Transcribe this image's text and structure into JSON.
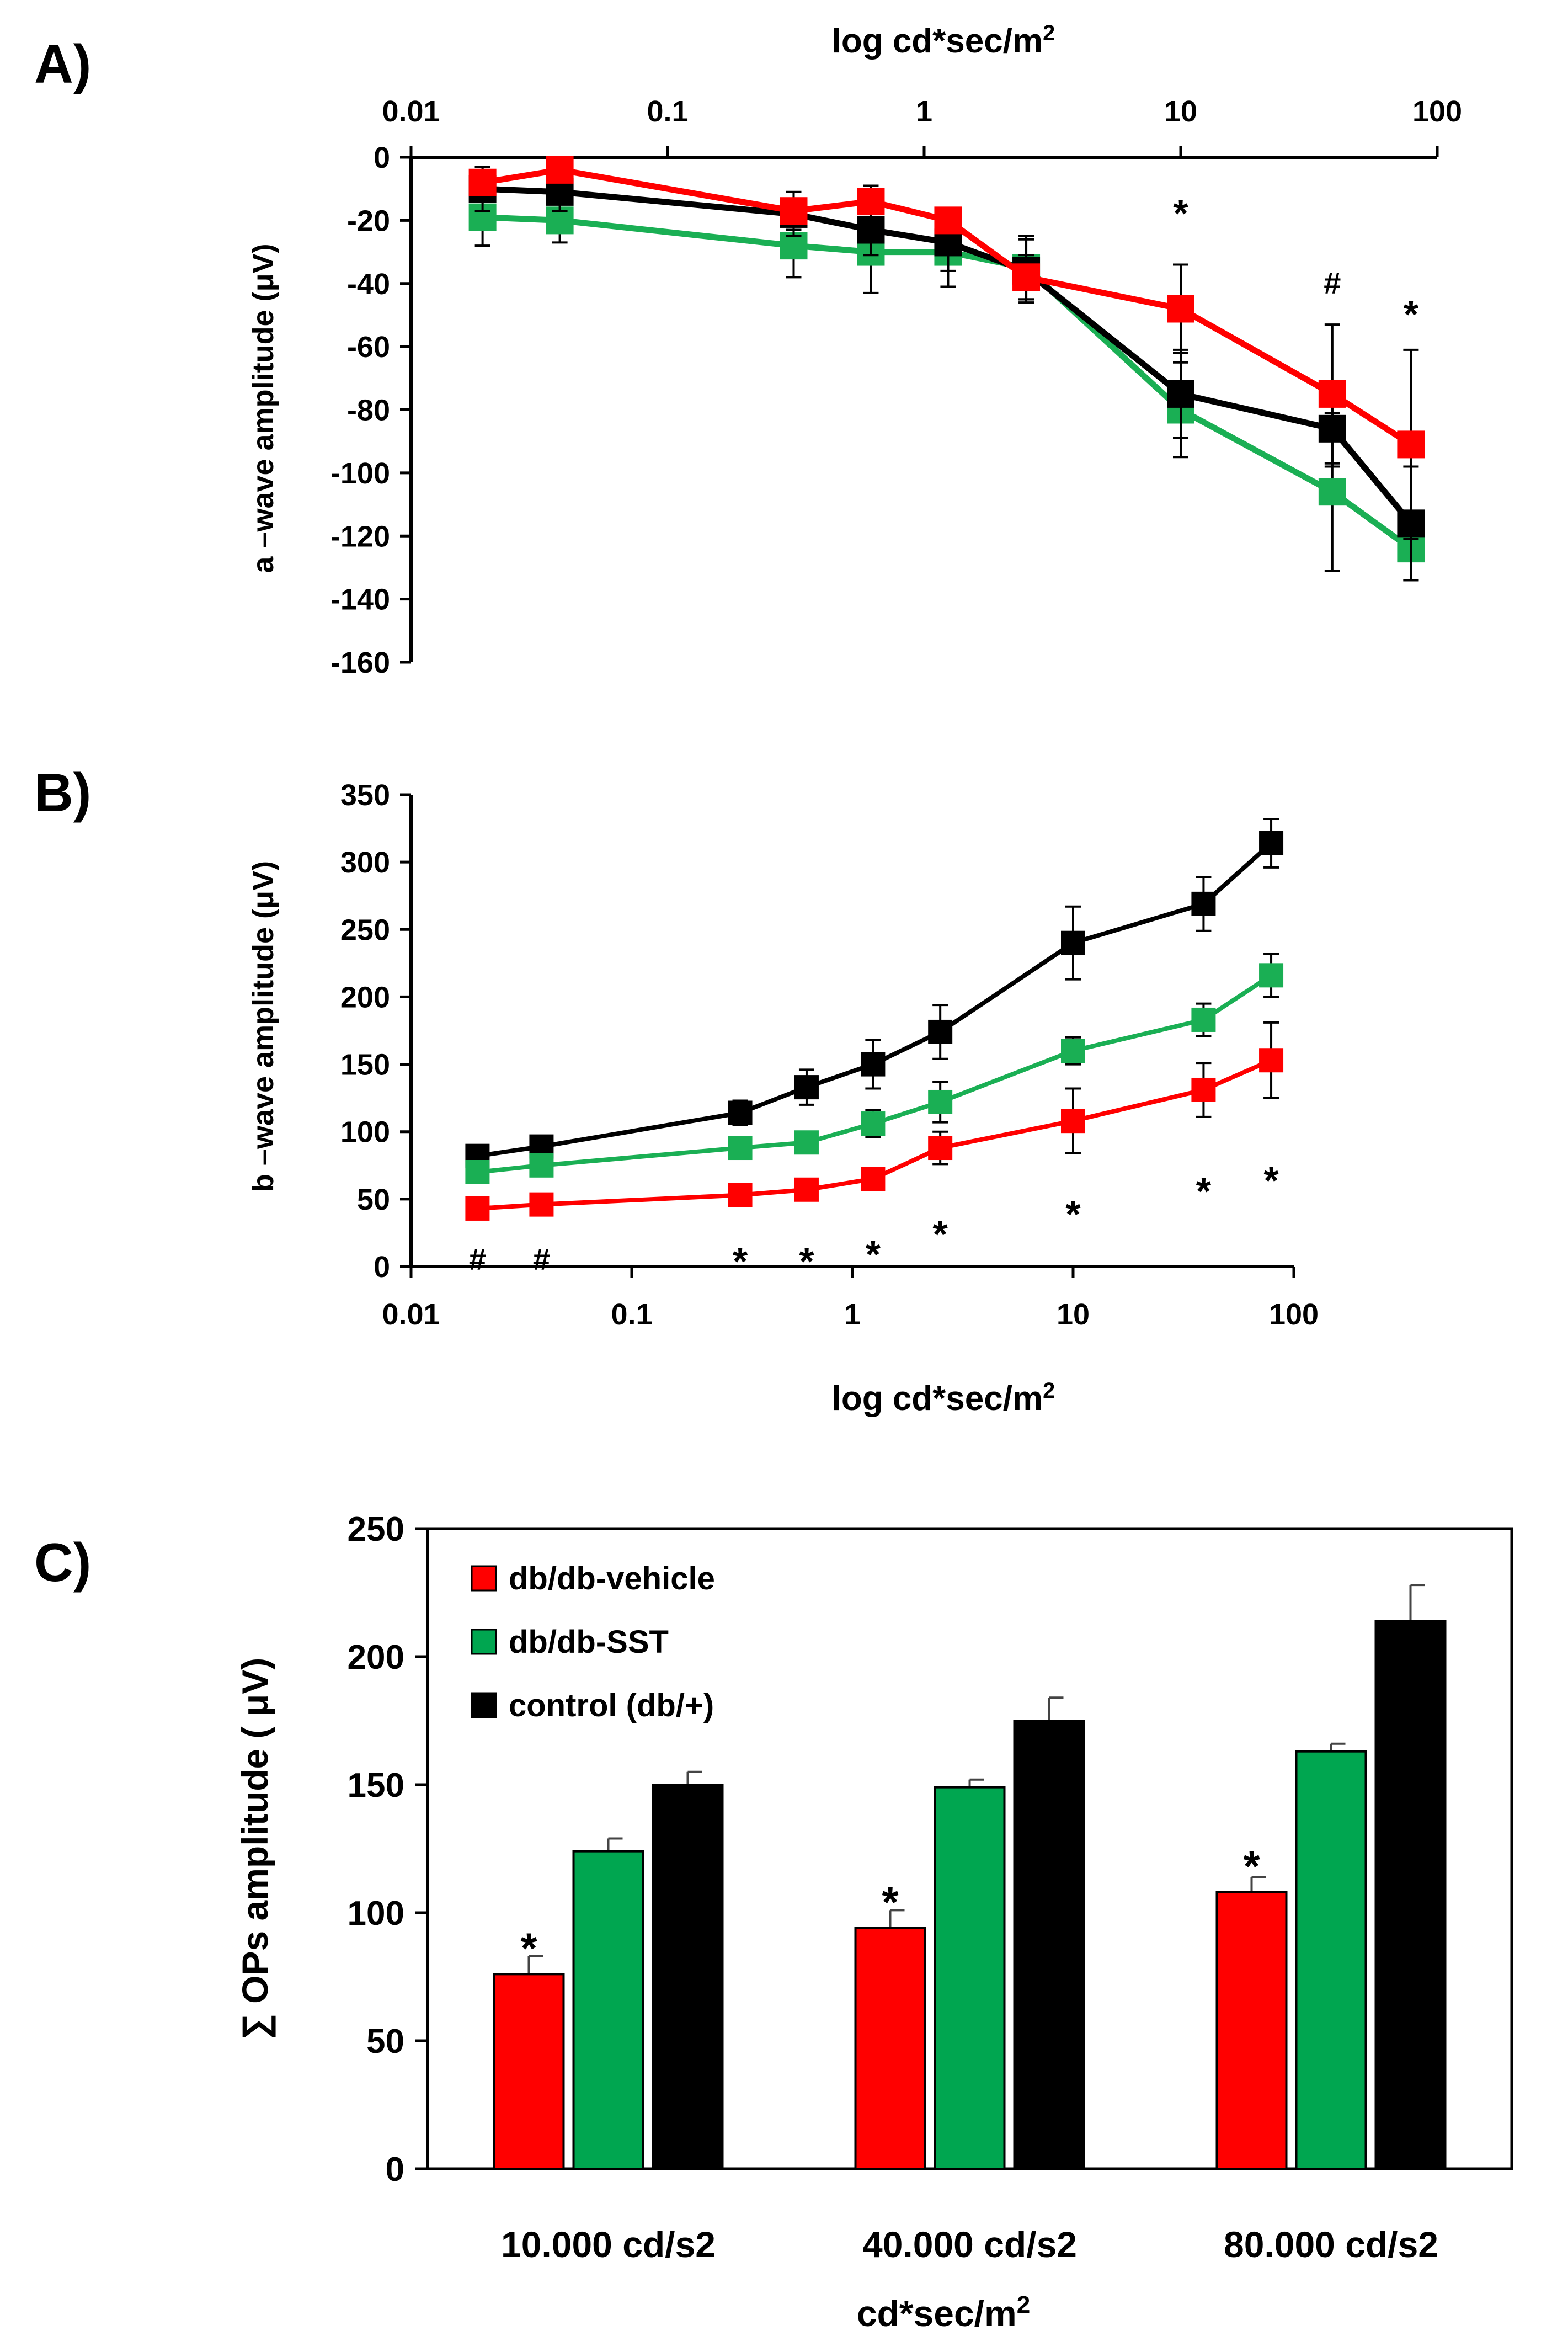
{
  "colors": {
    "vehicle": "#ff0000",
    "sst": "#1aaf54",
    "control": "#000000",
    "ops_sst": "#00a650"
  },
  "chart_data": [
    {
      "id": "A",
      "panel_label": "A)",
      "type": "line",
      "xlabel": "log cd*sec/m2",
      "xlabel_main": "log cd*sec/m",
      "xlabel_sup": "2",
      "ylabel": "a –wave amplitude (μV)",
      "x_scale": "log",
      "xlim": [
        0.01,
        100
      ],
      "ylim": [
        -160,
        0
      ],
      "x_ticks": [
        {
          "value": 0.01,
          "label": "0.01"
        },
        {
          "value": 0.1,
          "label": "0.1"
        },
        {
          "value": 1,
          "label": "1"
        },
        {
          "value": 10,
          "label": "10"
        },
        {
          "value": 100,
          "label": "100"
        }
      ],
      "y_ticks": [
        {
          "value": 0,
          "label": "0"
        },
        {
          "value": -20,
          "label": "-20"
        },
        {
          "value": -40,
          "label": "-40"
        },
        {
          "value": -60,
          "label": "-60"
        },
        {
          "value": -80,
          "label": "-80"
        },
        {
          "value": -100,
          "label": "-100"
        },
        {
          "value": -120,
          "label": "-120"
        },
        {
          "value": -140,
          "label": "-140"
        },
        {
          "value": -160,
          "label": "-160"
        }
      ],
      "series": [
        {
          "name": "db/db-SST",
          "color_key": "sst",
          "x": [
            0.019,
            0.038,
            0.31,
            0.62,
            1.24,
            2.5,
            10,
            39,
            79
          ],
          "values": [
            -19,
            -20,
            -28,
            -30,
            -30,
            -35,
            -80,
            -106,
            -124
          ],
          "errors": [
            9,
            7,
            10,
            13,
            11,
            10,
            15,
            25,
            10
          ]
        },
        {
          "name": "control (db/+)",
          "color_key": "control",
          "x": [
            0.019,
            0.038,
            0.31,
            0.62,
            1.24,
            2.5,
            10,
            39,
            79
          ],
          "values": [
            -10,
            -11,
            -18,
            -23,
            -27,
            -36,
            -75,
            -86,
            -116
          ],
          "errors": [
            7,
            6,
            7,
            8,
            9,
            10,
            14,
            12,
            18
          ]
        },
        {
          "name": "db/db-vehicle",
          "color_key": "vehicle",
          "x": [
            0.019,
            0.038,
            0.31,
            0.62,
            1.24,
            2.5,
            10,
            39,
            79
          ],
          "values": [
            -8,
            -4,
            -17,
            -14,
            -20,
            -38,
            -48,
            -75,
            -91
          ],
          "errors": [
            5,
            3,
            6,
            5,
            4,
            7,
            14,
            22,
            30
          ]
        }
      ],
      "annotations": [
        {
          "text": "*",
          "x": 10,
          "y": -16
        },
        {
          "text": "#",
          "x": 39,
          "y": -40
        },
        {
          "text": "*",
          "x": 79,
          "y": -48
        }
      ]
    },
    {
      "id": "B",
      "panel_label": "B)",
      "type": "line",
      "xlabel": "log cd*sec/m2",
      "xlabel_main": "log cd*sec/m",
      "xlabel_sup": "2",
      "ylabel": "b –wave amplitude (μV)",
      "x_scale": "log",
      "xlim": [
        0.01,
        100
      ],
      "ylim": [
        0,
        350
      ],
      "x_ticks": [
        {
          "value": 0.01,
          "label": "0.01"
        },
        {
          "value": 0.1,
          "label": "0.1"
        },
        {
          "value": 1,
          "label": "1"
        },
        {
          "value": 10,
          "label": "10"
        },
        {
          "value": 100,
          "label": "100"
        }
      ],
      "y_ticks": [
        {
          "value": 0,
          "label": "0"
        },
        {
          "value": 50,
          "label": "50"
        },
        {
          "value": 100,
          "label": "100"
        },
        {
          "value": 150,
          "label": "150"
        },
        {
          "value": 200,
          "label": "200"
        },
        {
          "value": 250,
          "label": "250"
        },
        {
          "value": 300,
          "label": "300"
        },
        {
          "value": 350,
          "label": "350"
        }
      ],
      "series": [
        {
          "name": "control (db/+)",
          "color_key": "control",
          "x": [
            0.02,
            0.039,
            0.31,
            0.62,
            1.24,
            2.5,
            10,
            39,
            79
          ],
          "values": [
            82,
            89,
            114,
            133,
            150,
            174,
            240,
            269,
            314
          ],
          "errors": [
            6,
            6,
            9,
            13,
            18,
            20,
            27,
            20,
            18
          ]
        },
        {
          "name": "db/db-SST",
          "color_key": "sst",
          "x": [
            0.02,
            0.039,
            0.31,
            0.62,
            1.24,
            2.5,
            10,
            39,
            79
          ],
          "values": [
            70,
            75,
            88,
            92,
            106,
            122,
            160,
            183,
            216
          ],
          "errors": [
            6,
            6,
            6,
            8,
            10,
            15,
            10,
            12,
            16
          ]
        },
        {
          "name": "db/db-vehicle",
          "color_key": "vehicle",
          "x": [
            0.02,
            0.039,
            0.31,
            0.62,
            1.24,
            2.5,
            10,
            39,
            79
          ],
          "values": [
            43,
            46,
            53,
            57,
            65,
            88,
            108,
            131,
            153
          ],
          "errors": [
            5,
            5,
            5,
            5,
            5,
            12,
            24,
            20,
            28
          ]
        }
      ],
      "annotations": [
        {
          "text": "#",
          "x": 0.02,
          "y": 5
        },
        {
          "text": "#",
          "x": 0.039,
          "y": 5
        },
        {
          "text": "*",
          "x": 0.31,
          "y": 8
        },
        {
          "text": "*",
          "x": 0.62,
          "y": 8
        },
        {
          "text": "*",
          "x": 1.24,
          "y": 13
        },
        {
          "text": "*",
          "x": 2.5,
          "y": 28
        },
        {
          "text": "*",
          "x": 10,
          "y": 43
        },
        {
          "text": "*",
          "x": 39,
          "y": 60
        },
        {
          "text": "*",
          "x": 79,
          "y": 68
        }
      ]
    },
    {
      "id": "C",
      "panel_label": "C)",
      "type": "bar",
      "categories": [
        "10.000 cd/s2",
        "40.000 cd/s2",
        "80.000 cd/s2"
      ],
      "xlabel": "cd*sec/m2",
      "xlabel_main": "cd*sec/m",
      "xlabel_sup": "2",
      "ylabel": "∑ OPs amplitude ( μV)",
      "ylim": [
        0,
        250
      ],
      "y_ticks": [
        {
          "value": 0,
          "label": "0"
        },
        {
          "value": 50,
          "label": "50"
        },
        {
          "value": 100,
          "label": "100"
        },
        {
          "value": 150,
          "label": "150"
        },
        {
          "value": 200,
          "label": "200"
        },
        {
          "value": 250,
          "label": "250"
        }
      ],
      "series": [
        {
          "name": "db/db-vehicle",
          "color_key": "vehicle",
          "values": [
            76,
            94,
            108
          ],
          "errors": [
            7,
            7,
            6
          ]
        },
        {
          "name": "db/db-SST",
          "color_key": "ops_sst",
          "values": [
            124,
            149,
            163
          ],
          "errors": [
            5,
            3,
            3
          ]
        },
        {
          "name": "control (db/+)",
          "color_key": "control",
          "values": [
            150,
            175,
            214
          ],
          "errors": [
            5,
            9,
            14
          ]
        }
      ],
      "annotations": [
        {
          "text": "*",
          "category": 0,
          "y": 89
        },
        {
          "text": "*",
          "category": 1,
          "y": 107
        },
        {
          "text": "*",
          "category": 2,
          "y": 121
        }
      ],
      "legend": {
        "position": "top-left",
        "entries": [
          "db/db-vehicle",
          "db/db-SST",
          "control (db/+)"
        ]
      }
    }
  ]
}
